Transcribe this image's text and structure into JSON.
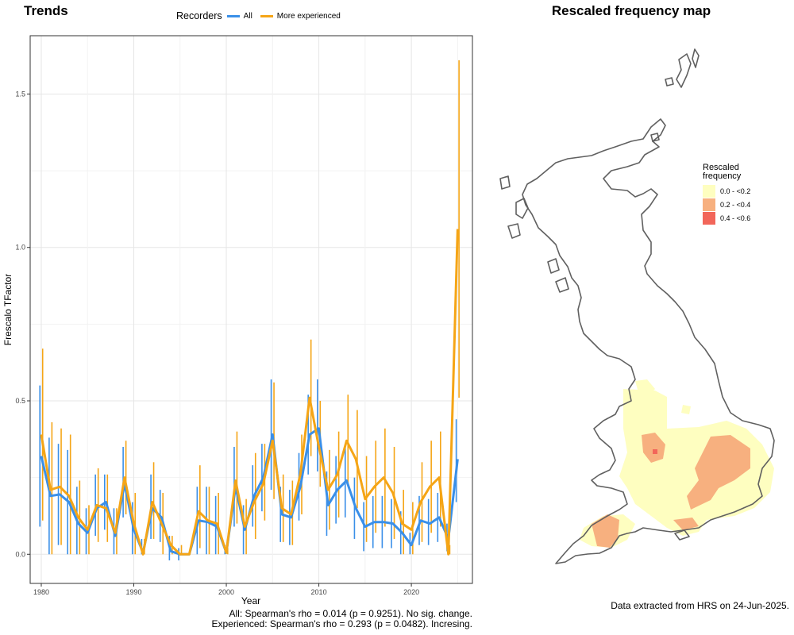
{
  "trends": {
    "title": "Trends",
    "legend": {
      "title": "Recorders",
      "items": [
        {
          "label": "All",
          "color": "#3a8fe8"
        },
        {
          "label": "More experienced",
          "color": "#f5a516"
        }
      ]
    },
    "stats": {
      "line1": "All: Spearman's rho = 0.014 (p = 0.9251). No sig. change.",
      "line2": "Experienced: Spearman's rho = 0.293 (p = 0.0482). Incresing."
    }
  },
  "map": {
    "title": "Rescaled frequency map",
    "legend": {
      "title_line1": "Rescaled",
      "title_line2": "frequency",
      "items": [
        {
          "label": "0.0 - <0.2",
          "color": "#fefec0"
        },
        {
          "label": "0.2 - <0.4",
          "color": "#f7b07f"
        },
        {
          "label": "0.4 - <0.6",
          "color": "#f2665a"
        }
      ]
    },
    "source": "Data extracted from HRS on 24-Jun-2025."
  },
  "chart_data": {
    "type": "line",
    "title": "Trends",
    "xlabel": "Year",
    "ylabel": "Frescalo TFactor",
    "xlim": [
      1978.8,
      1989.6,
      2026.6
    ],
    "ylim": [
      -0.095,
      1.69
    ],
    "xticks": [
      1980,
      1990,
      2000,
      2010,
      2020
    ],
    "yticks": [
      "0.0",
      "0.5",
      "1.0",
      "1.5"
    ],
    "ytick_values": [
      0,
      0.5,
      1.0,
      1.5
    ],
    "grid": true,
    "legend_position": "top",
    "x": [
      1980,
      1981,
      1982,
      1983,
      1984,
      1985,
      1986,
      1987,
      1988,
      1989,
      1990,
      1991,
      1992,
      1993,
      1994,
      1995,
      1996,
      1997,
      1998,
      1999,
      2000,
      2001,
      2002,
      2003,
      2004,
      2005,
      2006,
      2007,
      2008,
      2009,
      2010,
      2011,
      2012,
      2013,
      2014,
      2015,
      2016,
      2017,
      2018,
      2019,
      2020,
      2021,
      2022,
      2023,
      2024,
      2025
    ],
    "series": [
      {
        "name": "All",
        "color": "#3a8fe8",
        "values": [
          0.32,
          0.19,
          0.195,
          0.17,
          0.1,
          0.07,
          0.15,
          0.17,
          0.06,
          0.23,
          0.08,
          0.005,
          0.15,
          0.12,
          0.01,
          0.0,
          0.0,
          0.11,
          0.105,
          0.09,
          0.005,
          0.22,
          0.08,
          0.19,
          0.25,
          0.39,
          0.13,
          0.12,
          0.22,
          0.39,
          0.41,
          0.16,
          0.21,
          0.24,
          0.15,
          0.09,
          0.105,
          0.105,
          0.1,
          0.07,
          0.03,
          0.11,
          0.1,
          0.12,
          0.05,
          0.31
        ],
        "lower": [
          0.09,
          0.0,
          0.03,
          0.0,
          0.0,
          0.0,
          0.06,
          0.08,
          0.0,
          0.12,
          0.0,
          0.0,
          0.05,
          0.04,
          -0.02,
          -0.02,
          0.0,
          0.0,
          0.0,
          0.0,
          0.0,
          0.09,
          0.0,
          0.09,
          0.14,
          0.21,
          0.04,
          0.03,
          0.11,
          0.26,
          0.27,
          0.06,
          0.1,
          0.12,
          0.05,
          0.01,
          0.02,
          0.02,
          0.02,
          0.0,
          0.0,
          0.03,
          0.03,
          0.04,
          0.01,
          0.17
        ],
        "upper": [
          0.55,
          0.38,
          0.36,
          0.34,
          0.22,
          0.15,
          0.26,
          0.26,
          0.15,
          0.35,
          0.17,
          0.05,
          0.26,
          0.21,
          0.06,
          0.02,
          0.0,
          0.22,
          0.22,
          0.19,
          0.03,
          0.35,
          0.16,
          0.29,
          0.36,
          0.57,
          0.22,
          0.21,
          0.33,
          0.52,
          0.57,
          0.27,
          0.32,
          0.36,
          0.25,
          0.17,
          0.19,
          0.19,
          0.18,
          0.14,
          0.07,
          0.19,
          0.18,
          0.2,
          0.1,
          0.44
        ]
      },
      {
        "name": "More experienced",
        "color": "#f5a516",
        "values": [
          0.39,
          0.21,
          0.22,
          0.19,
          0.12,
          0.08,
          0.16,
          0.15,
          0.07,
          0.25,
          0.1,
          0.0,
          0.17,
          0.1,
          0.03,
          0.0,
          0.0,
          0.14,
          0.11,
          0.1,
          0.005,
          0.24,
          0.09,
          0.17,
          0.23,
          0.37,
          0.15,
          0.13,
          0.26,
          0.51,
          0.35,
          0.21,
          0.26,
          0.37,
          0.31,
          0.18,
          0.22,
          0.25,
          0.2,
          0.1,
          0.08,
          0.17,
          0.22,
          0.25,
          0.0,
          1.06
        ],
        "lower": [
          0.11,
          0.0,
          0.03,
          0.0,
          0.0,
          0.0,
          0.04,
          0.04,
          0.0,
          0.13,
          0.0,
          0.0,
          0.05,
          0.0,
          0.0,
          0.0,
          0.0,
          0.02,
          0.0,
          0.0,
          0.0,
          0.1,
          0.0,
          0.05,
          0.11,
          0.18,
          0.04,
          0.03,
          0.13,
          0.32,
          0.22,
          0.08,
          0.12,
          0.22,
          0.15,
          0.04,
          0.07,
          0.09,
          0.05,
          0.0,
          0.0,
          0.04,
          0.07,
          0.09,
          0.0,
          0.51
        ],
        "upper": [
          0.67,
          0.43,
          0.41,
          0.39,
          0.24,
          0.16,
          0.28,
          0.26,
          0.15,
          0.37,
          0.2,
          0.05,
          0.3,
          0.2,
          0.06,
          0.03,
          0.0,
          0.29,
          0.22,
          0.2,
          0.02,
          0.4,
          0.18,
          0.33,
          0.36,
          0.56,
          0.26,
          0.24,
          0.39,
          0.7,
          0.5,
          0.34,
          0.4,
          0.52,
          0.47,
          0.32,
          0.37,
          0.41,
          0.35,
          0.21,
          0.17,
          0.3,
          0.37,
          0.4,
          0.03,
          1.61
        ]
      }
    ]
  }
}
